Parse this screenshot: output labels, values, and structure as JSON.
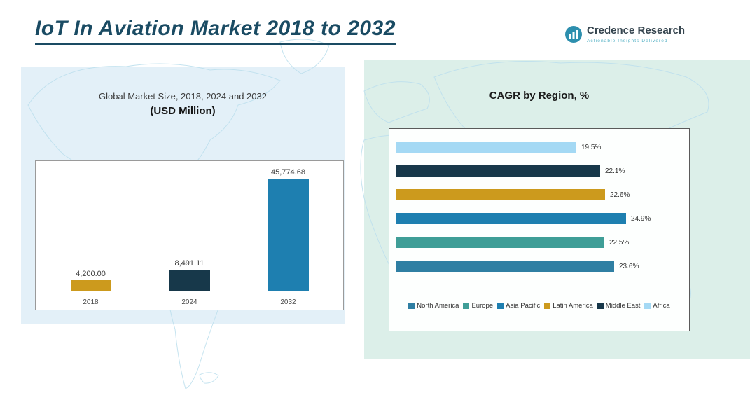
{
  "page": {
    "title": "IoT In Aviation Market 2018 to 2032"
  },
  "logo": {
    "name": "Credence Research",
    "tagline": "Actionable Insights Delivered"
  },
  "market_chart": {
    "title_line1": "Global Market Size, 2018, 2024 and 2032",
    "title_line2": "(USD Million)"
  },
  "cagr_chart": {
    "title": "CAGR by Region, %"
  },
  "colors": {
    "title": "#1a4b63",
    "panel_left_bg": "#e3f0f8",
    "panel_right_bg": "#dcefe9",
    "gold": "#cc9a1d",
    "navy": "#17384a",
    "blue": "#1e7fb0",
    "teal": "#3f9e97",
    "steel_blue": "#2f7fa3",
    "light_blue": "#a4d9f4"
  },
  "chart_data": [
    {
      "type": "bar",
      "title": "Global Market Size, 2018, 2024 and 2032 (USD Million)",
      "xlabel": "",
      "ylabel": "USD Million",
      "categories": [
        "2018",
        "2024",
        "2032"
      ],
      "values": [
        4200.0,
        8491.11,
        45774.68
      ],
      "value_labels": [
        "4,200.00",
        "8,491.11",
        "45,774.68"
      ],
      "bar_colors": [
        "#cc9a1d",
        "#17384a",
        "#1e7fb0"
      ],
      "ylim": [
        0,
        50000
      ],
      "grid": false,
      "legend_position": "none"
    },
    {
      "type": "bar",
      "orientation": "horizontal",
      "title": "CAGR by Region, %",
      "categories_top_to_bottom": [
        "Africa",
        "Middle East",
        "Latin America",
        "Asia Pacific",
        "Europe",
        "North America"
      ],
      "values": [
        19.5,
        22.1,
        22.6,
        24.9,
        22.5,
        23.6
      ],
      "value_labels": [
        "19.5%",
        "22.1%",
        "22.6%",
        "24.9%",
        "22.5%",
        "23.6%"
      ],
      "bar_colors": [
        "#a4d9f4",
        "#17384a",
        "#cc9a1d",
        "#1e7fb0",
        "#3f9e97",
        "#2f7fa3"
      ],
      "xlim": [
        0,
        27
      ],
      "grid": false,
      "legend_position": "bottom",
      "legend": [
        {
          "label": "North America",
          "color": "#2f7fa3"
        },
        {
          "label": "Europe",
          "color": "#3f9e97"
        },
        {
          "label": "Asia Pacific",
          "color": "#1e7fb0"
        },
        {
          "label": "Latin America",
          "color": "#cc9a1d"
        },
        {
          "label": "Middle East",
          "color": "#17384a"
        },
        {
          "label": "Africa",
          "color": "#a4d9f4"
        }
      ]
    }
  ]
}
